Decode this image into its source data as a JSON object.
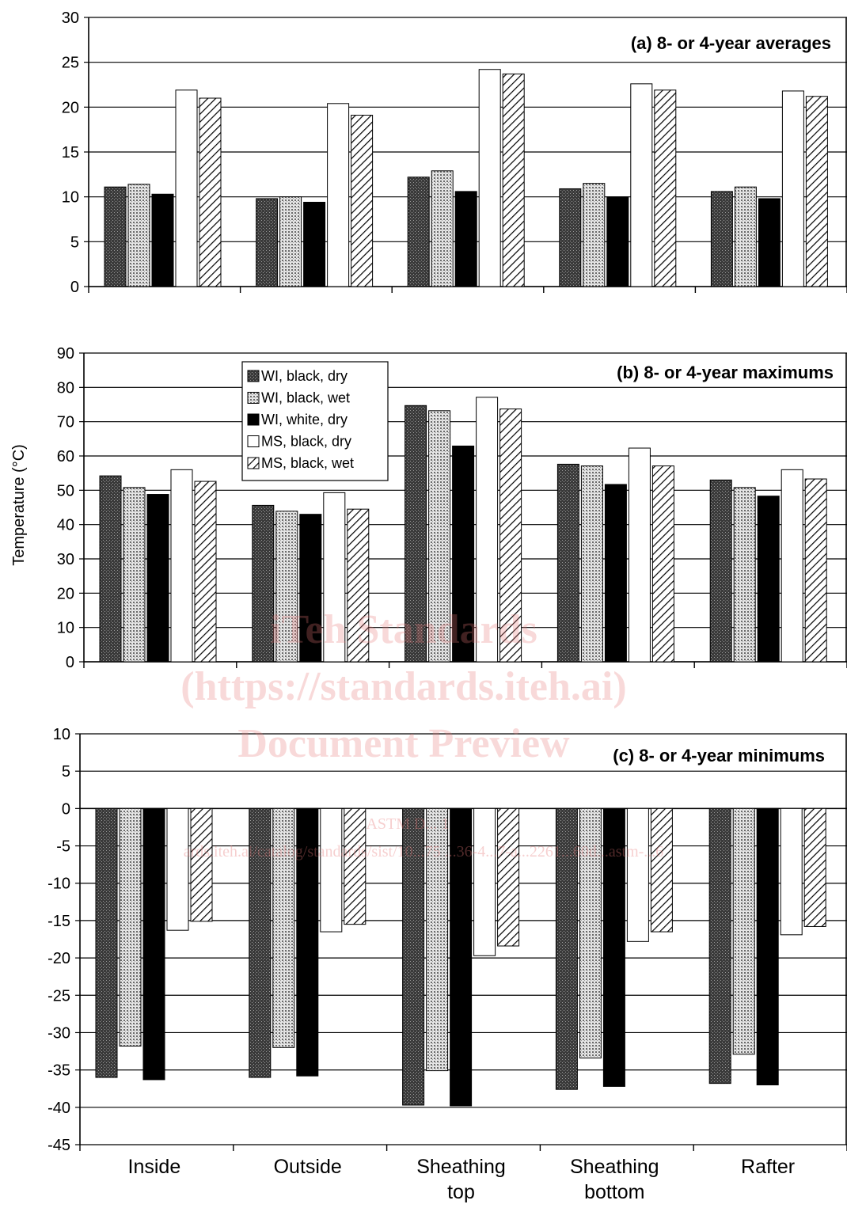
{
  "chart_data": {
    "type": "bar",
    "ylabel": "Temperature (°C)",
    "categories": [
      "Inside",
      "Outside",
      "Sheathing top",
      "Sheathing bottom",
      "Rafter"
    ],
    "category_lines": [
      [
        "Inside"
      ],
      [
        "Outside"
      ],
      [
        "Sheathing",
        "top"
      ],
      [
        "Sheathing",
        "bottom"
      ],
      [
        "Rafter"
      ]
    ],
    "series_names": [
      "WI, black, dry",
      "WI, black, wet",
      "WI, white, dry",
      "MS, black, dry",
      "MS, black, wet"
    ],
    "series_fills": [
      "dark-stipple",
      "light-stipple",
      "solid-black",
      "white",
      "diagonal-hatch"
    ],
    "legend_position": "top-left of panel (b)",
    "grid": "horizontal",
    "panels": [
      {
        "title": "(a) 8- or 4-year averages",
        "ylim": [
          0,
          30
        ],
        "yticks": [
          0,
          5,
          10,
          15,
          20,
          25,
          30
        ],
        "series": [
          {
            "name": "WI, black, dry",
            "values": [
              11.1,
              9.8,
              12.2,
              10.9,
              10.6
            ]
          },
          {
            "name": "WI, black, wet",
            "values": [
              11.4,
              10.0,
              12.9,
              11.5,
              11.1
            ]
          },
          {
            "name": "WI, white, dry",
            "values": [
              10.3,
              9.4,
              10.6,
              10.0,
              9.8
            ]
          },
          {
            "name": "MS, black, dry",
            "values": [
              21.9,
              20.4,
              24.2,
              22.6,
              21.8
            ]
          },
          {
            "name": "MS, black, wet",
            "values": [
              21.0,
              19.1,
              23.7,
              21.9,
              21.2
            ]
          }
        ]
      },
      {
        "title": "(b) 8- or 4-year maximums",
        "ylim": [
          0,
          90
        ],
        "yticks": [
          0,
          10,
          20,
          30,
          40,
          50,
          60,
          70,
          80,
          90
        ],
        "series": [
          {
            "name": "WI, black, dry",
            "values": [
              54.2,
              45.6,
              74.7,
              57.6,
              53.0
            ]
          },
          {
            "name": "WI, black, wet",
            "values": [
              50.8,
              43.9,
              73.2,
              57.1,
              50.8
            ]
          },
          {
            "name": "WI, white, dry",
            "values": [
              48.8,
              43.0,
              62.9,
              51.7,
              48.3
            ]
          },
          {
            "name": "MS, black, dry",
            "values": [
              56.0,
              49.3,
              77.1,
              62.3,
              56.0
            ]
          },
          {
            "name": "MS, black, wet",
            "values": [
              52.6,
              44.5,
              73.7,
              57.1,
              53.3
            ]
          }
        ]
      },
      {
        "title": "(c) 8- or 4-year minimums",
        "ylim": [
          -45,
          10
        ],
        "yticks": [
          -45,
          -40,
          -35,
          -30,
          -25,
          -20,
          -15,
          -10,
          -5,
          0,
          5,
          10
        ],
        "series": [
          {
            "name": "WI, black, dry",
            "values": [
              -36.0,
              -36.0,
              -39.7,
              -37.6,
              -36.8
            ]
          },
          {
            "name": "WI, black, wet",
            "values": [
              -31.8,
              -32.0,
              -35.1,
              -33.4,
              -32.9
            ]
          },
          {
            "name": "WI, white, dry",
            "values": [
              -36.3,
              -35.8,
              -39.8,
              -37.2,
              -37.0
            ]
          },
          {
            "name": "MS, black, dry",
            "values": [
              -16.3,
              -16.5,
              -19.7,
              -17.8,
              -16.9
            ]
          },
          {
            "name": "MS, black, wet",
            "values": [
              -15.1,
              -15.5,
              -18.4,
              -16.5,
              -15.8
            ]
          }
        ]
      }
    ]
  },
  "watermark": {
    "lines": [
      "iTeh Standards",
      "(https://standards.iteh.ai)",
      "Document Preview"
    ],
    "small_lines": [
      "ASTM D... 1",
      "ards.iteh.ai/catalog/standards/sist/10...75 ...36-4...7-a...2261...60d...astm-...6"
    ]
  }
}
